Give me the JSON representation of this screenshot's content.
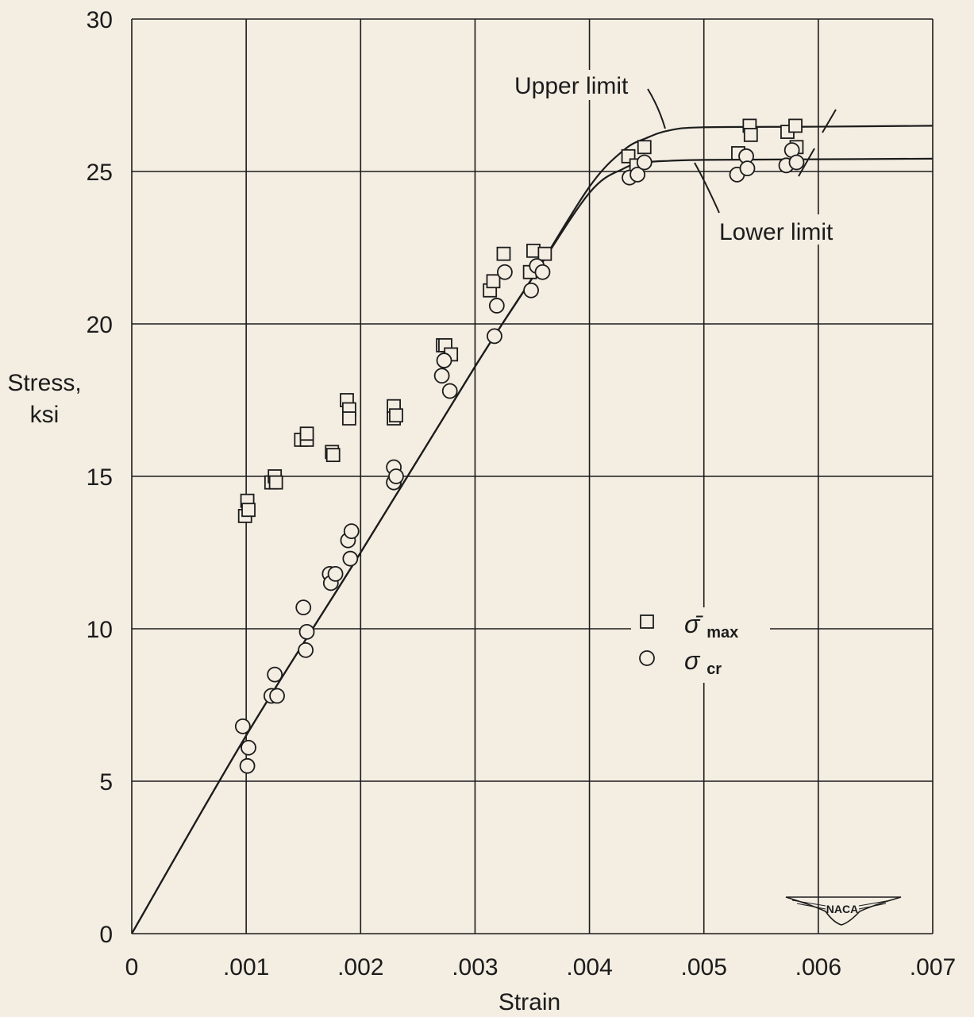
{
  "chart_data": {
    "type": "scatter",
    "title": "",
    "xlabel": "Strain",
    "ylabel": "Stress,\nksi",
    "xlim": [
      0,
      0.007
    ],
    "ylim": [
      0,
      30
    ],
    "x_ticks": [
      {
        "value": 0,
        "label": "0"
      },
      {
        "value": 0.001,
        "label": ".001"
      },
      {
        "value": 0.002,
        "label": ".002"
      },
      {
        "value": 0.003,
        "label": ".003"
      },
      {
        "value": 0.004,
        "label": ".004"
      },
      {
        "value": 0.005,
        "label": ".005"
      },
      {
        "value": 0.006,
        "label": ".006"
      },
      {
        "value": 0.007,
        "label": ".007"
      }
    ],
    "y_ticks": [
      {
        "value": 0,
        "label": "0"
      },
      {
        "value": 5,
        "label": "5"
      },
      {
        "value": 10,
        "label": "10"
      },
      {
        "value": 15,
        "label": "15"
      },
      {
        "value": 20,
        "label": "20"
      },
      {
        "value": 25,
        "label": "25"
      },
      {
        "value": 30,
        "label": "30"
      }
    ],
    "grid": true,
    "legend_position": "center-right",
    "series": [
      {
        "name": "σ̄max",
        "marker": "square",
        "points": [
          [
            0.00099,
            13.7
          ],
          [
            0.00101,
            14.2
          ],
          [
            0.00102,
            13.9
          ],
          [
            0.00122,
            14.8
          ],
          [
            0.00125,
            15.0
          ],
          [
            0.00126,
            14.8
          ],
          [
            0.00148,
            16.2
          ],
          [
            0.00153,
            16.2
          ],
          [
            0.00153,
            16.4
          ],
          [
            0.00175,
            15.8
          ],
          [
            0.00176,
            15.7
          ],
          [
            0.00188,
            17.5
          ],
          [
            0.0019,
            17.2
          ],
          [
            0.0019,
            16.9
          ],
          [
            0.00229,
            17.3
          ],
          [
            0.00229,
            16.9
          ],
          [
            0.00231,
            17.0
          ],
          [
            0.00272,
            19.3
          ],
          [
            0.00274,
            19.3
          ],
          [
            0.00279,
            19.0
          ],
          [
            0.00313,
            21.1
          ],
          [
            0.00316,
            21.4
          ],
          [
            0.00325,
            22.3
          ],
          [
            0.00348,
            21.7
          ],
          [
            0.00351,
            22.4
          ],
          [
            0.00361,
            22.3
          ],
          [
            0.00434,
            25.5
          ],
          [
            0.00441,
            25.2
          ],
          [
            0.00448,
            25.8
          ],
          [
            0.0053,
            25.6
          ],
          [
            0.0054,
            26.5
          ],
          [
            0.00541,
            26.2
          ],
          [
            0.00573,
            26.3
          ],
          [
            0.0058,
            26.5
          ],
          [
            0.00581,
            25.8
          ]
        ]
      },
      {
        "name": "σcr",
        "marker": "circle",
        "points": [
          [
            0.00097,
            6.8
          ],
          [
            0.00101,
            5.5
          ],
          [
            0.00102,
            6.1
          ],
          [
            0.00122,
            7.8
          ],
          [
            0.00125,
            8.5
          ],
          [
            0.00127,
            7.8
          ],
          [
            0.0015,
            10.7
          ],
          [
            0.00152,
            9.3
          ],
          [
            0.00153,
            9.9
          ],
          [
            0.00173,
            11.8
          ],
          [
            0.00174,
            11.5
          ],
          [
            0.00178,
            11.8
          ],
          [
            0.00189,
            12.9
          ],
          [
            0.00191,
            12.3
          ],
          [
            0.00192,
            13.2
          ],
          [
            0.00229,
            15.3
          ],
          [
            0.00229,
            14.8
          ],
          [
            0.00231,
            15.0
          ],
          [
            0.00271,
            18.3
          ],
          [
            0.00273,
            18.8
          ],
          [
            0.00278,
            17.8
          ],
          [
            0.00317,
            19.6
          ],
          [
            0.00319,
            20.6
          ],
          [
            0.00326,
            21.7
          ],
          [
            0.00349,
            21.1
          ],
          [
            0.00354,
            21.9
          ],
          [
            0.00359,
            21.7
          ],
          [
            0.00435,
            24.8
          ],
          [
            0.00442,
            24.9
          ],
          [
            0.00448,
            25.3
          ],
          [
            0.00529,
            24.9
          ],
          [
            0.00537,
            25.5
          ],
          [
            0.00538,
            25.1
          ],
          [
            0.00572,
            25.2
          ],
          [
            0.00577,
            25.7
          ],
          [
            0.00581,
            25.3
          ]
        ]
      }
    ],
    "curves": [
      {
        "name": "Upper limit",
        "points": [
          [
            0,
            0
          ],
          [
            0.001,
            6.5
          ],
          [
            0.002,
            12.5
          ],
          [
            0.003,
            18.6
          ],
          [
            0.0035,
            21.5
          ],
          [
            0.004,
            24.5
          ],
          [
            0.0043,
            25.7
          ],
          [
            0.0045,
            26.1
          ],
          [
            0.0047,
            26.35
          ],
          [
            0.005,
            26.45
          ],
          [
            0.006,
            26.47
          ],
          [
            0.007,
            26.5
          ]
        ]
      },
      {
        "name": "Lower limit",
        "points": [
          [
            0,
            0
          ],
          [
            0.001,
            6.5
          ],
          [
            0.002,
            12.5
          ],
          [
            0.003,
            18.6
          ],
          [
            0.0035,
            21.5
          ],
          [
            0.004,
            24.3
          ],
          [
            0.0043,
            25.1
          ],
          [
            0.0045,
            25.3
          ],
          [
            0.0047,
            25.35
          ],
          [
            0.005,
            25.38
          ],
          [
            0.006,
            25.4
          ],
          [
            0.007,
            25.42
          ]
        ]
      }
    ],
    "annotations": [
      {
        "text": "Upper limit",
        "target": "Upper limit"
      },
      {
        "text": "Lower limit",
        "target": "Lower limit"
      }
    ],
    "legend": {
      "max_symbol": "σ̄",
      "max_subscript": "max",
      "cr_symbol": "σ",
      "cr_subscript": "cr"
    },
    "logo_text": "NACA"
  }
}
